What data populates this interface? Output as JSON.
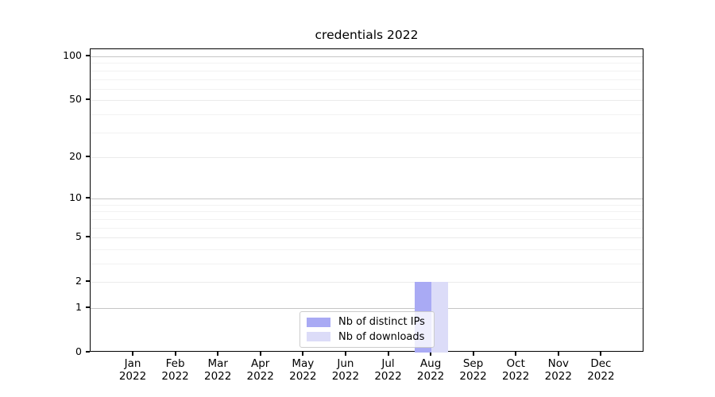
{
  "chart_data": {
    "type": "bar",
    "title": "credentials 2022",
    "categories": [
      "Jan",
      "Feb",
      "Mar",
      "Apr",
      "May",
      "Jun",
      "Jul",
      "Aug",
      "Sep",
      "Oct",
      "Nov",
      "Dec"
    ],
    "category_year": "2022",
    "series": [
      {
        "name": "Nb of distinct IPs",
        "color": "#a9aaf4",
        "values": [
          0,
          0,
          0,
          0,
          0,
          0,
          0,
          2,
          0,
          0,
          0,
          0
        ]
      },
      {
        "name": "Nb of downloads",
        "color": "#dcdcf8",
        "values": [
          0,
          0,
          0,
          0,
          0,
          0,
          0,
          2,
          0,
          0,
          0,
          0
        ]
      }
    ],
    "yaxis": {
      "scale": "log1p",
      "ticks": [
        0,
        1,
        2,
        5,
        10,
        20,
        50,
        100
      ],
      "minor_ticks": [
        3,
        4,
        6,
        7,
        8,
        9,
        30,
        40,
        60,
        70,
        80,
        90
      ],
      "ylim": [
        0,
        112
      ]
    },
    "xlabel": "",
    "ylabel": "",
    "grid": true,
    "legend": {
      "position": "lower center"
    }
  }
}
